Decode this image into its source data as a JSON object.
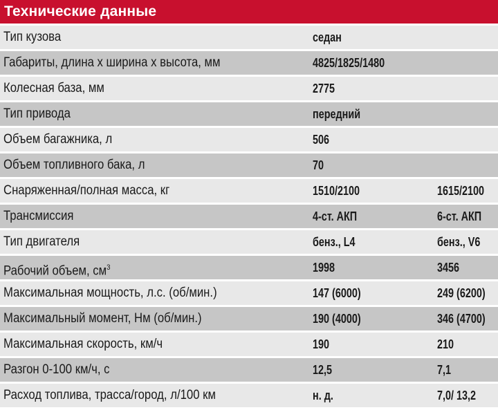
{
  "title": "Технические данные",
  "colors": {
    "header": "#c8102e",
    "row_light": "#e8e8e8",
    "row_dark": "#c6c6c6"
  },
  "rows": [
    {
      "label": "Тип кузова",
      "v1": "седан",
      "v2": ""
    },
    {
      "label": "Габариты, длина х ширина х высота, мм",
      "v1": "4825/1825/1480",
      "v2": ""
    },
    {
      "label": "Колесная база, мм",
      "v1": "2775",
      "v2": ""
    },
    {
      "label": "Тип привода",
      "v1": "передний",
      "v2": ""
    },
    {
      "label": "Объем багажника, л",
      "v1": "506",
      "v2": ""
    },
    {
      "label": "Объем топливного бака, л",
      "v1": "70",
      "v2": ""
    },
    {
      "label": "Снаряженная/полная масса, кг",
      "v1": "1510/2100",
      "v2": "1615/2100"
    },
    {
      "label": "Трансмиссия",
      "v1": "4-ст. АКП",
      "v2": "6-ст. АКП"
    },
    {
      "label": "Тип двигателя",
      "v1": "бенз., L4",
      "v2": "бенз., V6"
    },
    {
      "label": "Рабочий объем, см",
      "label_sup": "3",
      "v1": "1998",
      "v2": "3456"
    },
    {
      "label": "Максимальная мощность, л.с. (об/мин.)",
      "v1": "147 (6000)",
      "v2": "249 (6200)"
    },
    {
      "label": "Максимальный момент, Нм (об/мин.)",
      "v1": "190 (4000)",
      "v2": "346 (4700)"
    },
    {
      "label": "Максимальная скорость, км/ч",
      "v1": "190",
      "v2": "210"
    },
    {
      "label": "Разгон 0-100 км/ч, с",
      "v1": "12,5",
      "v2": "7,1"
    },
    {
      "label": "Расход топлива, трасса/город, л/100 км",
      "v1": "н. д.",
      "v2": "7,0/ 13,2"
    }
  ]
}
